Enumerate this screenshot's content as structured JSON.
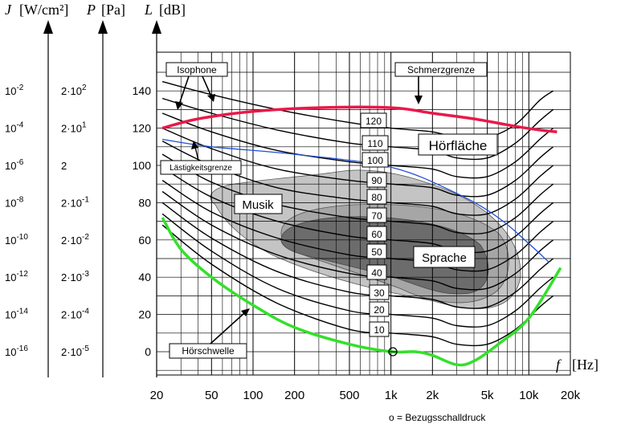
{
  "axes": {
    "J": {
      "symbol": "J",
      "unit": "[W/cm²]",
      "ticks": [
        {
          "base": "10",
          "exp": "-2"
        },
        {
          "base": "10",
          "exp": "-4"
        },
        {
          "base": "10",
          "exp": "-6"
        },
        {
          "base": "10",
          "exp": "-8"
        },
        {
          "base": "10",
          "exp": "-10"
        },
        {
          "base": "10",
          "exp": "-12"
        },
        {
          "base": "10",
          "exp": "-14"
        },
        {
          "base": "10",
          "exp": "-16"
        }
      ]
    },
    "P": {
      "symbol": "P",
      "unit": "[Pa]",
      "ticks": [
        {
          "base": "2·10",
          "exp": "2"
        },
        {
          "base": "2·10",
          "exp": "1"
        },
        {
          "base": "2",
          "exp": ""
        },
        {
          "base": "2·10",
          "exp": "-1"
        },
        {
          "base": "2·10",
          "exp": "-2"
        },
        {
          "base": "2·10",
          "exp": "-3"
        },
        {
          "base": "2·10",
          "exp": "-4"
        },
        {
          "base": "2·10",
          "exp": "-5"
        }
      ]
    },
    "L": {
      "symbol": "L",
      "unit": "[dB]",
      "ticks": [
        "140",
        "120",
        "100",
        "80",
        "60",
        "40",
        "20",
        "0"
      ]
    },
    "f": {
      "symbol": "f",
      "unit": "[Hz]",
      "ticks": [
        "20",
        "50",
        "100",
        "200",
        "500",
        "1k",
        "2k",
        "5k",
        "10k",
        "20k"
      ]
    }
  },
  "labels": {
    "isophone": "Isophone",
    "schmerzgrenze": "Schmerzgrenze",
    "hoerflaeche": "Hörfläche",
    "laestigkeitsgrenze": "Lästigkeitsgrenze",
    "musik": "Musik",
    "sprache": "Sprache",
    "hoerschwelle": "Hörschwelle",
    "bezugsschalldruck": "o = Bezugsschalldruck"
  },
  "phon_labels": [
    "120",
    "110",
    "100",
    "90",
    "80",
    "70",
    "60",
    "50",
    "40",
    "30",
    "20",
    "10"
  ],
  "colors": {
    "schmerzgrenze": "#e8194a",
    "hoerschwelle": "#33e02a",
    "laestigkeitsgrenze": "#1f4fd8",
    "musik_area": "#c4c4c4",
    "sprache_light": "#a6a6a6",
    "sprache_dark": "#6c6c6c"
  },
  "chart_data": {
    "type": "line",
    "title": "",
    "xlabel": "f [Hz]",
    "ylabel": "L [dB]",
    "xscale": "log",
    "xlim": [
      20,
      20000
    ],
    "ylim": [
      -10,
      155
    ],
    "series": [
      {
        "name": "Hörschwelle",
        "points": [
          [
            22,
            72
          ],
          [
            30,
            55
          ],
          [
            50,
            40
          ],
          [
            100,
            25
          ],
          [
            200,
            13
          ],
          [
            500,
            4
          ],
          [
            1000,
            0
          ],
          [
            1500,
            0
          ],
          [
            2000,
            -2
          ],
          [
            3000,
            -7
          ],
          [
            4000,
            -5
          ],
          [
            6000,
            4
          ],
          [
            10000,
            18
          ],
          [
            17000,
            45
          ]
        ]
      },
      {
        "name": "Schmerzgrenze",
        "points": [
          [
            22,
            120
          ],
          [
            40,
            125
          ],
          [
            100,
            129
          ],
          [
            300,
            131
          ],
          [
            1000,
            131
          ],
          [
            2000,
            128
          ],
          [
            4000,
            125
          ],
          [
            8000,
            121
          ],
          [
            12000,
            119
          ],
          [
            16000,
            118
          ]
        ]
      },
      {
        "name": "Lästigkeitsgrenze",
        "points": [
          [
            22,
            114
          ],
          [
            50,
            110
          ],
          [
            200,
            106
          ],
          [
            1000,
            99
          ],
          [
            3000,
            85
          ],
          [
            6000,
            72
          ],
          [
            10000,
            58
          ],
          [
            14000,
            48
          ]
        ]
      },
      {
        "name": "Isophone 120",
        "points": [
          [
            22,
            145
          ],
          [
            50,
            138
          ],
          [
            150,
            130
          ],
          [
            500,
            123
          ],
          [
            1000,
            120
          ],
          [
            2000,
            118
          ],
          [
            3000,
            115
          ],
          [
            5000,
            115
          ],
          [
            8000,
            122
          ],
          [
            12000,
            135
          ],
          [
            15000,
            140
          ]
        ]
      },
      {
        "name": "Isophone 110",
        "points": [
          [
            22,
            136
          ],
          [
            50,
            128
          ],
          [
            150,
            119
          ],
          [
            500,
            112
          ],
          [
            1000,
            110
          ],
          [
            2000,
            108
          ],
          [
            3000,
            104
          ],
          [
            5000,
            104
          ],
          [
            8000,
            112
          ],
          [
            12000,
            124
          ],
          [
            15000,
            130
          ]
        ]
      },
      {
        "name": "Isophone 100",
        "points": [
          [
            22,
            128
          ],
          [
            50,
            118
          ],
          [
            150,
            108
          ],
          [
            500,
            102
          ],
          [
            1000,
            100
          ],
          [
            2000,
            98
          ],
          [
            3000,
            94
          ],
          [
            5000,
            94
          ],
          [
            8000,
            102
          ],
          [
            12000,
            114
          ],
          [
            15000,
            120
          ]
        ]
      },
      {
        "name": "Isophone 90",
        "points": [
          [
            22,
            120
          ],
          [
            50,
            109
          ],
          [
            150,
            98
          ],
          [
            500,
            92
          ],
          [
            1000,
            90
          ],
          [
            2000,
            88
          ],
          [
            3000,
            84
          ],
          [
            5000,
            84
          ],
          [
            8000,
            92
          ],
          [
            12000,
            104
          ],
          [
            15000,
            110
          ]
        ]
      },
      {
        "name": "Isophone 80",
        "points": [
          [
            22,
            113
          ],
          [
            50,
            100
          ],
          [
            150,
            88
          ],
          [
            500,
            82
          ],
          [
            1000,
            80
          ],
          [
            2000,
            78
          ],
          [
            3000,
            74
          ],
          [
            5000,
            74
          ],
          [
            8000,
            82
          ],
          [
            12000,
            94
          ],
          [
            15000,
            100
          ]
        ]
      },
      {
        "name": "Isophone 70",
        "points": [
          [
            22,
            106
          ],
          [
            50,
            91
          ],
          [
            150,
            79
          ],
          [
            500,
            72
          ],
          [
            1000,
            70
          ],
          [
            2000,
            68
          ],
          [
            3000,
            64
          ],
          [
            5000,
            64
          ],
          [
            8000,
            72
          ],
          [
            12000,
            84
          ],
          [
            15000,
            90
          ]
        ]
      },
      {
        "name": "Isophone 60",
        "points": [
          [
            22,
            99
          ],
          [
            50,
            83
          ],
          [
            150,
            70
          ],
          [
            500,
            62
          ],
          [
            1000,
            60
          ],
          [
            2000,
            58
          ],
          [
            3000,
            54
          ],
          [
            5000,
            54
          ],
          [
            8000,
            62
          ],
          [
            12000,
            74
          ],
          [
            15000,
            80
          ]
        ]
      },
      {
        "name": "Isophone 50",
        "points": [
          [
            22,
            92
          ],
          [
            50,
            75
          ],
          [
            150,
            61
          ],
          [
            500,
            52
          ],
          [
            1000,
            50
          ],
          [
            2000,
            48
          ],
          [
            3000,
            44
          ],
          [
            5000,
            44
          ],
          [
            8000,
            52
          ],
          [
            12000,
            64
          ],
          [
            15000,
            70
          ]
        ]
      },
      {
        "name": "Isophone 40",
        "points": [
          [
            22,
            86
          ],
          [
            50,
            68
          ],
          [
            150,
            52
          ],
          [
            500,
            42
          ],
          [
            1000,
            40
          ],
          [
            2000,
            38
          ],
          [
            3000,
            34
          ],
          [
            5000,
            34
          ],
          [
            8000,
            42
          ],
          [
            12000,
            54
          ],
          [
            15000,
            60
          ]
        ]
      },
      {
        "name": "Isophone 30",
        "points": [
          [
            22,
            80
          ],
          [
            50,
            61
          ],
          [
            150,
            43
          ],
          [
            500,
            32
          ],
          [
            1000,
            30
          ],
          [
            2000,
            28
          ],
          [
            3000,
            24
          ],
          [
            5000,
            24
          ],
          [
            8000,
            32
          ],
          [
            12000,
            44
          ],
          [
            15000,
            50
          ]
        ]
      },
      {
        "name": "Isophone 20",
        "points": [
          [
            22,
            74
          ],
          [
            50,
            54
          ],
          [
            150,
            34
          ],
          [
            500,
            22
          ],
          [
            1000,
            20
          ],
          [
            2000,
            18
          ],
          [
            3000,
            14
          ],
          [
            5000,
            14
          ],
          [
            8000,
            22
          ],
          [
            12000,
            34
          ],
          [
            15000,
            40
          ]
        ]
      },
      {
        "name": "Isophone 10",
        "points": [
          [
            22,
            68
          ],
          [
            50,
            47
          ],
          [
            150,
            26
          ],
          [
            500,
            12
          ],
          [
            1000,
            10
          ],
          [
            2000,
            8
          ],
          [
            3000,
            4
          ],
          [
            5000,
            4
          ],
          [
            8000,
            12
          ],
          [
            12000,
            24
          ],
          [
            15000,
            30
          ]
        ]
      }
    ],
    "regions": [
      {
        "name": "Musik",
        "range": "approx. 40–10000 Hz, 10–95 dB"
      },
      {
        "name": "Sprache",
        "range": "approx. 150–6000 Hz, 25–75 dB"
      }
    ],
    "reference_point": {
      "f": 1000,
      "L": 0,
      "label": "o = Bezugsschalldruck"
    }
  }
}
